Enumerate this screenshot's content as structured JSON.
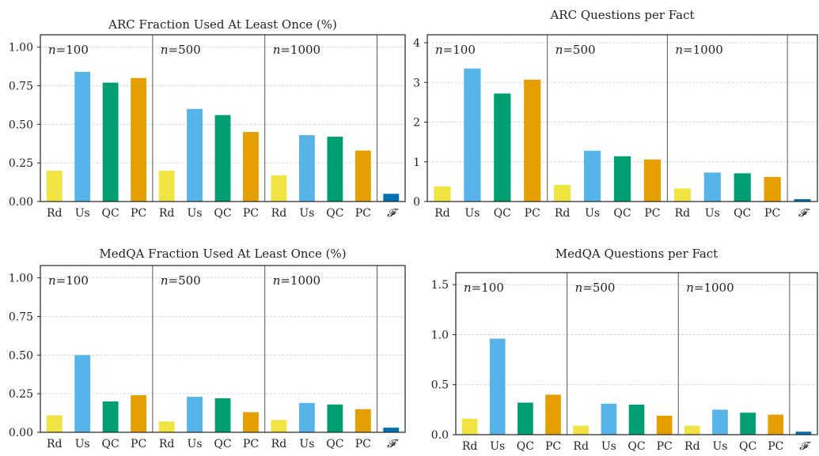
{
  "colors": {
    "Rd": "#f0e442",
    "Us": "#56b4e9",
    "QC": "#009e73",
    "PC": "#e69f00",
    "F": "#0072b2",
    "grid": "#cccccc",
    "frame": "#222222",
    "divider": "#555555"
  },
  "chart_data": [
    {
      "type": "bar",
      "title": "ARC Fraction Used At Least Once (%)",
      "groups": [
        {
          "label": "n=100",
          "n_var": "n",
          "n_val": "=100"
        },
        {
          "label": "n=500",
          "n_var": "n",
          "n_val": "=500"
        },
        {
          "label": "n=1000",
          "n_var": "n",
          "n_val": "=1000"
        }
      ],
      "methods": [
        "Rd",
        "Us",
        "QC",
        "PC"
      ],
      "values": [
        [
          0.2,
          0.84,
          0.77,
          0.8
        ],
        [
          0.2,
          0.6,
          0.56,
          0.45
        ],
        [
          0.17,
          0.43,
          0.42,
          0.33
        ]
      ],
      "final_label": "𝓕",
      "final_value": 0.05,
      "ylim": [
        0,
        1.08
      ],
      "yticks": [
        0.0,
        0.25,
        0.5,
        0.75,
        1.0
      ],
      "ytick_labels": [
        "0.00",
        "0.25",
        "0.50",
        "0.75",
        "1.00"
      ],
      "grid": true
    },
    {
      "type": "bar",
      "title": "ARC Questions per Fact",
      "groups": [
        {
          "label": "n=100",
          "n_var": "n",
          "n_val": "=100"
        },
        {
          "label": "n=500",
          "n_var": "n",
          "n_val": "=500"
        },
        {
          "label": "n=1000",
          "n_var": "n",
          "n_val": "=1000"
        }
      ],
      "methods": [
        "Rd",
        "Us",
        "QC",
        "PC"
      ],
      "values": [
        [
          0.38,
          3.35,
          2.72,
          3.07
        ],
        [
          0.42,
          1.28,
          1.14,
          1.06
        ],
        [
          0.33,
          0.73,
          0.71,
          0.62
        ]
      ],
      "final_label": "𝓕",
      "final_value": 0.06,
      "ylim": [
        0,
        4.2
      ],
      "yticks": [
        0,
        1,
        2,
        3,
        4
      ],
      "ytick_labels": [
        "0",
        "1",
        "2",
        "3",
        "4"
      ],
      "grid": true
    },
    {
      "type": "bar",
      "title": "MedQA Fraction Used At Least Once (%)",
      "groups": [
        {
          "label": "n=100",
          "n_var": "n",
          "n_val": "=100"
        },
        {
          "label": "n=500",
          "n_var": "n",
          "n_val": "=500"
        },
        {
          "label": "n=1000",
          "n_var": "n",
          "n_val": "=1000"
        }
      ],
      "methods": [
        "Rd",
        "Us",
        "QC",
        "PC"
      ],
      "values": [
        [
          0.11,
          0.5,
          0.2,
          0.24
        ],
        [
          0.07,
          0.23,
          0.22,
          0.13
        ],
        [
          0.08,
          0.19,
          0.18,
          0.15
        ]
      ],
      "final_label": "𝓕",
      "final_value": 0.03,
      "ylim": [
        0,
        1.08
      ],
      "yticks": [
        0.0,
        0.25,
        0.5,
        0.75,
        1.0
      ],
      "ytick_labels": [
        "0.00",
        "0.25",
        "0.50",
        "0.75",
        "1.00"
      ],
      "grid": true
    },
    {
      "type": "bar",
      "title": "MedQA Questions per Fact",
      "groups": [
        {
          "label": "n=100",
          "n_var": "n",
          "n_val": "=100"
        },
        {
          "label": "n=500",
          "n_var": "n",
          "n_val": "=500"
        },
        {
          "label": "n=1000",
          "n_var": "n",
          "n_val": "=1000"
        }
      ],
      "methods": [
        "Rd",
        "Us",
        "QC",
        "PC"
      ],
      "values": [
        [
          0.16,
          0.96,
          0.32,
          0.4
        ],
        [
          0.09,
          0.31,
          0.3,
          0.19
        ],
        [
          0.09,
          0.25,
          0.22,
          0.2
        ]
      ],
      "final_label": "𝓕",
      "final_value": 0.03,
      "ylim": [
        0,
        1.62
      ],
      "yticks": [
        0.0,
        0.5,
        1.0,
        1.5
      ],
      "ytick_labels": [
        "0.0",
        "0.5",
        "1.0",
        "1.5"
      ],
      "grid": true
    }
  ]
}
